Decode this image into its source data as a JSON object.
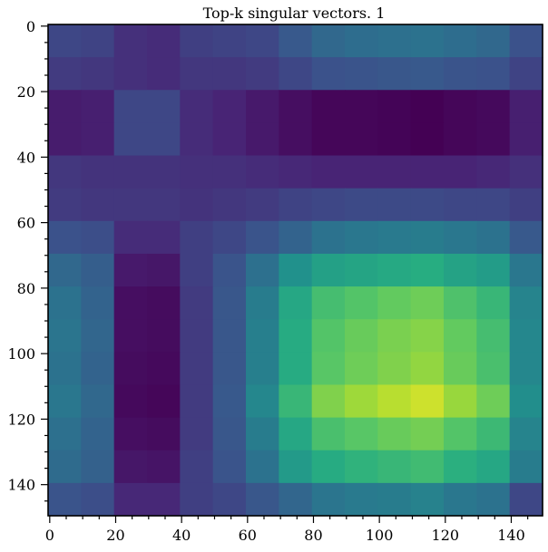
{
  "chart_data": {
    "type": "heatmap",
    "title": "Top-k singular vectors. 1",
    "xlabel": "",
    "ylabel": "",
    "colormap": "viridis",
    "grid": false,
    "xlim": [
      -0.5,
      149.5
    ],
    "ylim": [
      149.5,
      -0.5
    ],
    "x_ticks": [
      0,
      20,
      40,
      60,
      80,
      100,
      120,
      140
    ],
    "y_ticks": [
      0,
      20,
      40,
      60,
      80,
      100,
      120,
      140
    ],
    "x_tick_labels": [
      "0",
      "20",
      "40",
      "60",
      "80",
      "100",
      "120",
      "140"
    ],
    "y_tick_labels": [
      "0",
      "20",
      "40",
      "60",
      "80",
      "100",
      "120",
      "140"
    ],
    "block_size": 10,
    "block_rows": 15,
    "block_cols": 15,
    "values": [
      [
        0.22,
        0.21,
        0.16,
        0.15,
        0.2,
        0.21,
        0.22,
        0.28,
        0.34,
        0.36,
        0.37,
        0.38,
        0.36,
        0.34,
        0.25
      ],
      [
        0.19,
        0.18,
        0.16,
        0.15,
        0.18,
        0.18,
        0.19,
        0.22,
        0.25,
        0.26,
        0.27,
        0.28,
        0.26,
        0.25,
        0.21
      ],
      [
        0.1,
        0.11,
        0.22,
        0.22,
        0.15,
        0.13,
        0.09,
        0.05,
        0.02,
        0.02,
        0.01,
        0.0,
        0.02,
        0.03,
        0.11
      ],
      [
        0.1,
        0.11,
        0.22,
        0.22,
        0.15,
        0.13,
        0.09,
        0.05,
        0.02,
        0.02,
        0.01,
        0.0,
        0.02,
        0.03,
        0.11
      ],
      [
        0.18,
        0.17,
        0.17,
        0.17,
        0.16,
        0.16,
        0.15,
        0.14,
        0.13,
        0.13,
        0.13,
        0.13,
        0.13,
        0.14,
        0.16
      ],
      [
        0.19,
        0.18,
        0.18,
        0.18,
        0.17,
        0.18,
        0.19,
        0.21,
        0.22,
        0.23,
        0.23,
        0.23,
        0.22,
        0.22,
        0.2
      ],
      [
        0.25,
        0.24,
        0.15,
        0.15,
        0.2,
        0.22,
        0.26,
        0.32,
        0.38,
        0.4,
        0.41,
        0.42,
        0.4,
        0.38,
        0.28
      ],
      [
        0.34,
        0.3,
        0.09,
        0.08,
        0.2,
        0.26,
        0.37,
        0.5,
        0.57,
        0.59,
        0.61,
        0.63,
        0.58,
        0.55,
        0.4
      ],
      [
        0.38,
        0.32,
        0.05,
        0.04,
        0.19,
        0.27,
        0.42,
        0.6,
        0.7,
        0.73,
        0.76,
        0.78,
        0.72,
        0.67,
        0.45
      ],
      [
        0.39,
        0.33,
        0.05,
        0.04,
        0.19,
        0.27,
        0.43,
        0.62,
        0.73,
        0.77,
        0.8,
        0.82,
        0.76,
        0.7,
        0.46
      ],
      [
        0.38,
        0.32,
        0.04,
        0.03,
        0.19,
        0.27,
        0.43,
        0.62,
        0.74,
        0.78,
        0.81,
        0.84,
        0.77,
        0.71,
        0.46
      ],
      [
        0.4,
        0.34,
        0.03,
        0.02,
        0.19,
        0.28,
        0.46,
        0.67,
        0.81,
        0.86,
        0.9,
        0.93,
        0.85,
        0.78,
        0.49
      ],
      [
        0.37,
        0.32,
        0.05,
        0.04,
        0.19,
        0.27,
        0.42,
        0.6,
        0.71,
        0.74,
        0.77,
        0.79,
        0.73,
        0.68,
        0.45
      ],
      [
        0.35,
        0.31,
        0.08,
        0.07,
        0.2,
        0.26,
        0.38,
        0.54,
        0.62,
        0.65,
        0.67,
        0.69,
        0.64,
        0.6,
        0.42
      ],
      [
        0.26,
        0.24,
        0.14,
        0.14,
        0.2,
        0.22,
        0.27,
        0.33,
        0.39,
        0.41,
        0.42,
        0.44,
        0.4,
        0.38,
        0.22
      ]
    ]
  }
}
